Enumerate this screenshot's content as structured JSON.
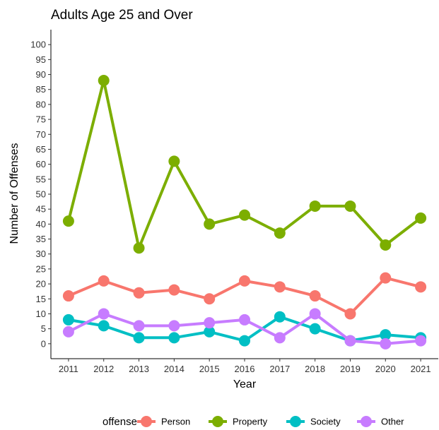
{
  "chart_data": {
    "type": "line",
    "title": "Adults Age 25 and Over",
    "xlabel": "Year",
    "ylabel": "Number of Offenses",
    "x": [
      "2011",
      "2012",
      "2013",
      "2014",
      "2015",
      "2016",
      "2017",
      "2018",
      "2019",
      "2020",
      "2021"
    ],
    "y_ticks": [
      "0",
      "5",
      "10",
      "15",
      "20",
      "25",
      "30",
      "35",
      "40",
      "45",
      "50",
      "55",
      "60",
      "65",
      "70",
      "75",
      "80",
      "85",
      "90",
      "95",
      "100"
    ],
    "ylim": [
      -5,
      105
    ],
    "grid": false,
    "legend": {
      "title": "offense",
      "position": "bottom"
    },
    "series": [
      {
        "name": "Person",
        "color": "#F8766D",
        "values": [
          16,
          21,
          17,
          18,
          15,
          21,
          19,
          16,
          10,
          22,
          19
        ]
      },
      {
        "name": "Property",
        "color": "#7CAE00",
        "values": [
          41,
          88,
          32,
          61,
          40,
          43,
          37,
          46,
          46,
          33,
          42
        ]
      },
      {
        "name": "Society",
        "color": "#00BFC4",
        "values": [
          8,
          6,
          2,
          2,
          4,
          1,
          9,
          5,
          1,
          3,
          2
        ]
      },
      {
        "name": "Other",
        "color": "#C77CFF",
        "values": [
          4,
          10,
          6,
          6,
          7,
          8,
          2,
          10,
          1,
          0,
          1
        ]
      }
    ]
  }
}
